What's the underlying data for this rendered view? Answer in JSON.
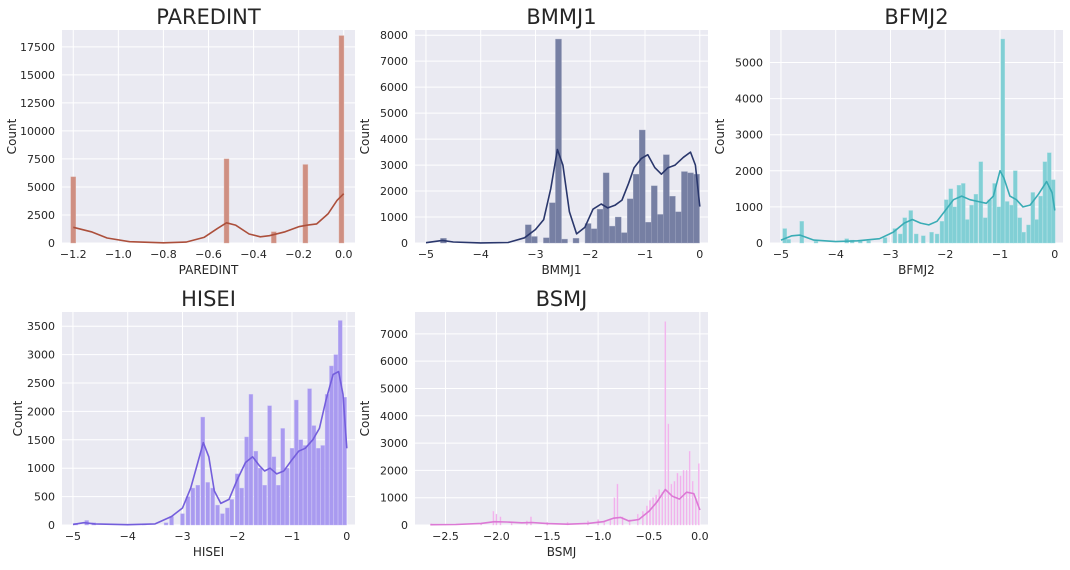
{
  "chart_data": [
    {
      "type": "histogram",
      "title": "PAREDINT",
      "xlabel": "PAREDINT",
      "ylabel": "Count",
      "xlim": [
        -1.25,
        0.05
      ],
      "ylim": [
        0,
        19000
      ],
      "xticks": [
        -1.2,
        -1.0,
        -0.8,
        -0.6,
        -0.4,
        -0.2,
        0.0
      ],
      "xtick_labels": [
        "−1.2",
        "−1.0",
        "−0.8",
        "−0.6",
        "−0.4",
        "−0.2",
        "0.0"
      ],
      "yticks": [
        0,
        2500,
        5000,
        7500,
        10000,
        12500,
        15000,
        17500
      ],
      "ytick_labels": [
        "0",
        "2500",
        "5000",
        "7500",
        "10000",
        "12500",
        "15000",
        "17500"
      ],
      "color": "#b5533e",
      "bin_width": 0.022,
      "bins": [
        [
          -1.2,
          5900
        ],
        [
          -0.52,
          7500
        ],
        [
          -0.31,
          1000
        ],
        [
          -0.17,
          7000
        ],
        [
          -0.01,
          18500
        ]
      ],
      "kde": [
        [
          -1.2,
          1400
        ],
        [
          -1.12,
          1000
        ],
        [
          -1.05,
          450
        ],
        [
          -0.95,
          120
        ],
        [
          -0.8,
          20
        ],
        [
          -0.7,
          80
        ],
        [
          -0.62,
          500
        ],
        [
          -0.56,
          1300
        ],
        [
          -0.52,
          1800
        ],
        [
          -0.48,
          1600
        ],
        [
          -0.42,
          800
        ],
        [
          -0.37,
          550
        ],
        [
          -0.33,
          650
        ],
        [
          -0.26,
          1000
        ],
        [
          -0.2,
          1450
        ],
        [
          -0.16,
          1600
        ],
        [
          -0.12,
          1700
        ],
        [
          -0.07,
          2600
        ],
        [
          -0.03,
          3800
        ],
        [
          0.0,
          4400
        ]
      ]
    },
    {
      "type": "histogram",
      "title": "BMMJ1",
      "xlabel": "BMMJ1",
      "ylabel": "Count",
      "xlim": [
        -5.2,
        0.15
      ],
      "ylim": [
        0,
        8200
      ],
      "xticks": [
        -5,
        -4,
        -3,
        -2,
        -1,
        0
      ],
      "xtick_labels": [
        "−5",
        "−4",
        "−3",
        "−2",
        "−1",
        "0"
      ],
      "yticks": [
        0,
        1000,
        2000,
        3000,
        4000,
        5000,
        6000,
        7000,
        8000
      ],
      "ytick_labels": [
        "0",
        "1000",
        "2000",
        "3000",
        "4000",
        "5000",
        "6000",
        "7000",
        "8000"
      ],
      "color": "#2c3a72",
      "bin_width": 0.11,
      "bins": [
        [
          -4.68,
          180
        ],
        [
          -3.13,
          700
        ],
        [
          -3.02,
          250
        ],
        [
          -2.8,
          200
        ],
        [
          -2.69,
          1550
        ],
        [
          -2.58,
          7850
        ],
        [
          -2.47,
          150
        ],
        [
          -2.26,
          180
        ],
        [
          -2.04,
          750
        ],
        [
          -1.93,
          550
        ],
        [
          -1.82,
          1300
        ],
        [
          -1.71,
          2700
        ],
        [
          -1.6,
          650
        ],
        [
          -1.49,
          1000
        ],
        [
          -1.38,
          400
        ],
        [
          -1.27,
          1700
        ],
        [
          -1.16,
          2650
        ],
        [
          -1.05,
          4350
        ],
        [
          -0.94,
          800
        ],
        [
          -0.83,
          2200
        ],
        [
          -0.72,
          1100
        ],
        [
          -0.61,
          3400
        ],
        [
          -0.5,
          1800
        ],
        [
          -0.39,
          1200
        ],
        [
          -0.28,
          2750
        ],
        [
          -0.17,
          2700
        ],
        [
          -0.06,
          2650
        ]
      ],
      "kde": [
        [
          -5.0,
          10
        ],
        [
          -4.7,
          100
        ],
        [
          -4.5,
          40
        ],
        [
          -4.0,
          5
        ],
        [
          -3.5,
          20
        ],
        [
          -3.2,
          200
        ],
        [
          -3.0,
          520
        ],
        [
          -2.85,
          900
        ],
        [
          -2.72,
          2100
        ],
        [
          -2.6,
          3600
        ],
        [
          -2.5,
          3000
        ],
        [
          -2.38,
          1200
        ],
        [
          -2.25,
          350
        ],
        [
          -2.1,
          600
        ],
        [
          -1.95,
          1300
        ],
        [
          -1.8,
          1500
        ],
        [
          -1.68,
          1350
        ],
        [
          -1.55,
          1450
        ],
        [
          -1.42,
          1650
        ],
        [
          -1.3,
          2300
        ],
        [
          -1.2,
          2900
        ],
        [
          -1.07,
          3250
        ],
        [
          -0.95,
          3400
        ],
        [
          -0.82,
          2900
        ],
        [
          -0.7,
          2650
        ],
        [
          -0.58,
          2900
        ],
        [
          -0.45,
          3000
        ],
        [
          -0.3,
          3300
        ],
        [
          -0.17,
          3500
        ],
        [
          -0.08,
          3000
        ],
        [
          0.0,
          1400
        ]
      ]
    },
    {
      "type": "histogram",
      "title": "BFMJ2",
      "xlabel": "BFMJ2",
      "ylabel": "Count",
      "xlim": [
        -5.2,
        0.15
      ],
      "ylim": [
        0,
        5900
      ],
      "xticks": [
        -5,
        -4,
        -3,
        -2,
        -1,
        0
      ],
      "xtick_labels": [
        "−5",
        "−4",
        "−3",
        "−2",
        "−1",
        "0"
      ],
      "yticks": [
        0,
        1000,
        2000,
        3000,
        4000,
        5000
      ],
      "ytick_labels": [
        "0",
        "1000",
        "2000",
        "3000",
        "4000",
        "5000"
      ],
      "color": "#3db5bf",
      "bin_width": 0.072,
      "bins": [
        [
          -4.93,
          400
        ],
        [
          -4.86,
          100
        ],
        [
          -4.62,
          600
        ],
        [
          -4.36,
          50
        ],
        [
          -3.8,
          120
        ],
        [
          -3.7,
          80
        ],
        [
          -3.55,
          80
        ],
        [
          -3.4,
          60
        ],
        [
          -3.1,
          150
        ],
        [
          -2.92,
          400
        ],
        [
          -2.82,
          250
        ],
        [
          -2.74,
          700
        ],
        [
          -2.63,
          900
        ],
        [
          -2.53,
          250
        ],
        [
          -2.4,
          200
        ],
        [
          -2.25,
          300
        ],
        [
          -2.15,
          250
        ],
        [
          -2.06,
          600
        ],
        [
          -1.98,
          1200
        ],
        [
          -1.9,
          1500
        ],
        [
          -1.83,
          1000
        ],
        [
          -1.75,
          1600
        ],
        [
          -1.67,
          1650
        ],
        [
          -1.6,
          650
        ],
        [
          -1.52,
          1050
        ],
        [
          -1.44,
          1350
        ],
        [
          -1.35,
          2250
        ],
        [
          -1.27,
          700
        ],
        [
          -1.19,
          1200
        ],
        [
          -1.1,
          1650
        ],
        [
          -1.02,
          1000
        ],
        [
          -0.95,
          5650
        ],
        [
          -0.87,
          1150
        ],
        [
          -0.79,
          1050
        ],
        [
          -0.72,
          2000
        ],
        [
          -0.64,
          700
        ],
        [
          -0.57,
          300
        ],
        [
          -0.48,
          500
        ],
        [
          -0.4,
          1400
        ],
        [
          -0.33,
          650
        ],
        [
          -0.26,
          1300
        ],
        [
          -0.18,
          2250
        ],
        [
          -0.1,
          2500
        ],
        [
          -0.03,
          1750
        ]
      ],
      "kde": [
        [
          -5.0,
          80
        ],
        [
          -4.8,
          200
        ],
        [
          -4.65,
          220
        ],
        [
          -4.4,
          80
        ],
        [
          -4.0,
          40
        ],
        [
          -3.6,
          60
        ],
        [
          -3.2,
          120
        ],
        [
          -2.95,
          300
        ],
        [
          -2.75,
          550
        ],
        [
          -2.6,
          650
        ],
        [
          -2.45,
          550
        ],
        [
          -2.3,
          500
        ],
        [
          -2.15,
          600
        ],
        [
          -2.0,
          900
        ],
        [
          -1.85,
          1200
        ],
        [
          -1.7,
          1300
        ],
        [
          -1.55,
          1200
        ],
        [
          -1.4,
          1150
        ],
        [
          -1.25,
          1100
        ],
        [
          -1.12,
          1300
        ],
        [
          -1.0,
          2000
        ],
        [
          -0.93,
          1800
        ],
        [
          -0.82,
          1300
        ],
        [
          -0.7,
          1200
        ],
        [
          -0.58,
          1000
        ],
        [
          -0.45,
          1050
        ],
        [
          -0.3,
          1350
        ],
        [
          -0.15,
          1700
        ],
        [
          -0.05,
          1400
        ],
        [
          0.0,
          900
        ]
      ]
    },
    {
      "type": "histogram",
      "title": "HISEI",
      "xlabel": "HISEI",
      "ylabel": "Count",
      "xlim": [
        -5.2,
        0.15
      ],
      "ylim": [
        0,
        3750
      ],
      "xticks": [
        -5,
        -4,
        -3,
        -2,
        -1,
        0
      ],
      "xtick_labels": [
        "−5",
        "−4",
        "−3",
        "−2",
        "−1",
        "0"
      ],
      "yticks": [
        0,
        500,
        1000,
        1500,
        2000,
        2500,
        3000,
        3500
      ],
      "ytick_labels": [
        "0",
        "500",
        "1000",
        "1500",
        "2000",
        "2500",
        "3000",
        "3500"
      ],
      "color": "#7a63e8",
      "bin_width": 0.072,
      "bins": [
        [
          -4.95,
          30
        ],
        [
          -4.75,
          80
        ],
        [
          -4.62,
          40
        ],
        [
          -3.7,
          20
        ],
        [
          -3.3,
          40
        ],
        [
          -3.2,
          150
        ],
        [
          -3.0,
          200
        ],
        [
          -2.9,
          500
        ],
        [
          -2.81,
          650
        ],
        [
          -2.72,
          700
        ],
        [
          -2.63,
          1900
        ],
        [
          -2.54,
          750
        ],
        [
          -2.45,
          650
        ],
        [
          -2.36,
          350
        ],
        [
          -2.27,
          200
        ],
        [
          -2.18,
          300
        ],
        [
          -2.1,
          450
        ],
        [
          -2.0,
          900
        ],
        [
          -1.92,
          650
        ],
        [
          -1.83,
          1550
        ],
        [
          -1.75,
          2300
        ],
        [
          -1.66,
          1300
        ],
        [
          -1.58,
          1000
        ],
        [
          -1.5,
          700
        ],
        [
          -1.41,
          2100
        ],
        [
          -1.33,
          1200
        ],
        [
          -1.25,
          700
        ],
        [
          -1.17,
          1700
        ],
        [
          -1.09,
          1000
        ],
        [
          -1.0,
          1350
        ],
        [
          -0.92,
          2200
        ],
        [
          -0.84,
          1500
        ],
        [
          -0.76,
          1400
        ],
        [
          -0.68,
          2400
        ],
        [
          -0.6,
          1750
        ],
        [
          -0.52,
          1350
        ],
        [
          -0.44,
          1400
        ],
        [
          -0.36,
          2300
        ],
        [
          -0.28,
          2800
        ],
        [
          -0.2,
          3000
        ],
        [
          -0.12,
          3600
        ],
        [
          -0.04,
          2250
        ]
      ],
      "kde": [
        [
          -5.0,
          10
        ],
        [
          -4.8,
          40
        ],
        [
          -4.6,
          20
        ],
        [
          -4.0,
          5
        ],
        [
          -3.5,
          20
        ],
        [
          -3.2,
          150
        ],
        [
          -3.0,
          300
        ],
        [
          -2.85,
          650
        ],
        [
          -2.72,
          1100
        ],
        [
          -2.62,
          1450
        ],
        [
          -2.52,
          1200
        ],
        [
          -2.42,
          600
        ],
        [
          -2.3,
          380
        ],
        [
          -2.15,
          450
        ],
        [
          -2.0,
          800
        ],
        [
          -1.85,
          1100
        ],
        [
          -1.72,
          1200
        ],
        [
          -1.6,
          1050
        ],
        [
          -1.5,
          950
        ],
        [
          -1.4,
          1000
        ],
        [
          -1.28,
          900
        ],
        [
          -1.15,
          950
        ],
        [
          -1.0,
          1150
        ],
        [
          -0.88,
          1300
        ],
        [
          -0.76,
          1350
        ],
        [
          -0.62,
          1500
        ],
        [
          -0.5,
          1700
        ],
        [
          -0.38,
          2200
        ],
        [
          -0.25,
          2650
        ],
        [
          -0.15,
          2700
        ],
        [
          -0.07,
          2300
        ],
        [
          0.0,
          1350
        ]
      ]
    },
    {
      "type": "histogram",
      "title": "BSMJ",
      "xlabel": "BSMJ",
      "ylabel": "Count",
      "xlim": [
        -2.8,
        0.08
      ],
      "ylim": [
        0,
        7800
      ],
      "xticks": [
        -2.5,
        -2.0,
        -1.5,
        -1.0,
        -0.5,
        0.0
      ],
      "xtick_labels": [
        "−2.5",
        "−2.0",
        "−1.5",
        "−1.0",
        "−0.5",
        "0.0"
      ],
      "yticks": [
        0,
        1000,
        2000,
        3000,
        4000,
        5000,
        6000,
        7000
      ],
      "ytick_labels": [
        "0",
        "1000",
        "2000",
        "3000",
        "4000",
        "5000",
        "6000",
        "7000"
      ],
      "color": "#e87fe0",
      "bin_width": 0.012,
      "bins": [
        [
          -2.64,
          50
        ],
        [
          -2.15,
          60
        ],
        [
          -2.03,
          500
        ],
        [
          -2.0,
          400
        ],
        [
          -1.96,
          300
        ],
        [
          -1.85,
          100
        ],
        [
          -1.7,
          150
        ],
        [
          -1.66,
          300
        ],
        [
          -1.5,
          100
        ],
        [
          -1.3,
          100
        ],
        [
          -1.1,
          150
        ],
        [
          -1.0,
          200
        ],
        [
          -0.94,
          150
        ],
        [
          -0.88,
          200
        ],
        [
          -0.84,
          1000
        ],
        [
          -0.81,
          1500
        ],
        [
          -0.76,
          300
        ],
        [
          -0.69,
          200
        ],
        [
          -0.61,
          400
        ],
        [
          -0.56,
          500
        ],
        [
          -0.52,
          700
        ],
        [
          -0.49,
          900
        ],
        [
          -0.46,
          1000
        ],
        [
          -0.43,
          1100
        ],
        [
          -0.4,
          1300
        ],
        [
          -0.37,
          1200
        ],
        [
          -0.34,
          7450
        ],
        [
          -0.31,
          3700
        ],
        [
          -0.28,
          1500
        ],
        [
          -0.25,
          1600
        ],
        [
          -0.22,
          1900
        ],
        [
          -0.19,
          1800
        ],
        [
          -0.16,
          2000
        ],
        [
          -0.13,
          2000
        ],
        [
          -0.1,
          2700
        ],
        [
          -0.07,
          1600
        ],
        [
          -0.04,
          1000
        ],
        [
          -0.01,
          2250
        ]
      ],
      "kde": [
        [
          -2.65,
          10
        ],
        [
          -2.4,
          20
        ],
        [
          -2.15,
          60
        ],
        [
          -2.02,
          120
        ],
        [
          -1.9,
          110
        ],
        [
          -1.75,
          80
        ],
        [
          -1.65,
          90
        ],
        [
          -1.5,
          50
        ],
        [
          -1.3,
          30
        ],
        [
          -1.1,
          60
        ],
        [
          -0.95,
          120
        ],
        [
          -0.85,
          250
        ],
        [
          -0.78,
          280
        ],
        [
          -0.7,
          150
        ],
        [
          -0.6,
          200
        ],
        [
          -0.5,
          500
        ],
        [
          -0.42,
          850
        ],
        [
          -0.34,
          1300
        ],
        [
          -0.27,
          1050
        ],
        [
          -0.2,
          950
        ],
        [
          -0.13,
          1200
        ],
        [
          -0.06,
          1150
        ],
        [
          0.0,
          550
        ]
      ]
    }
  ]
}
